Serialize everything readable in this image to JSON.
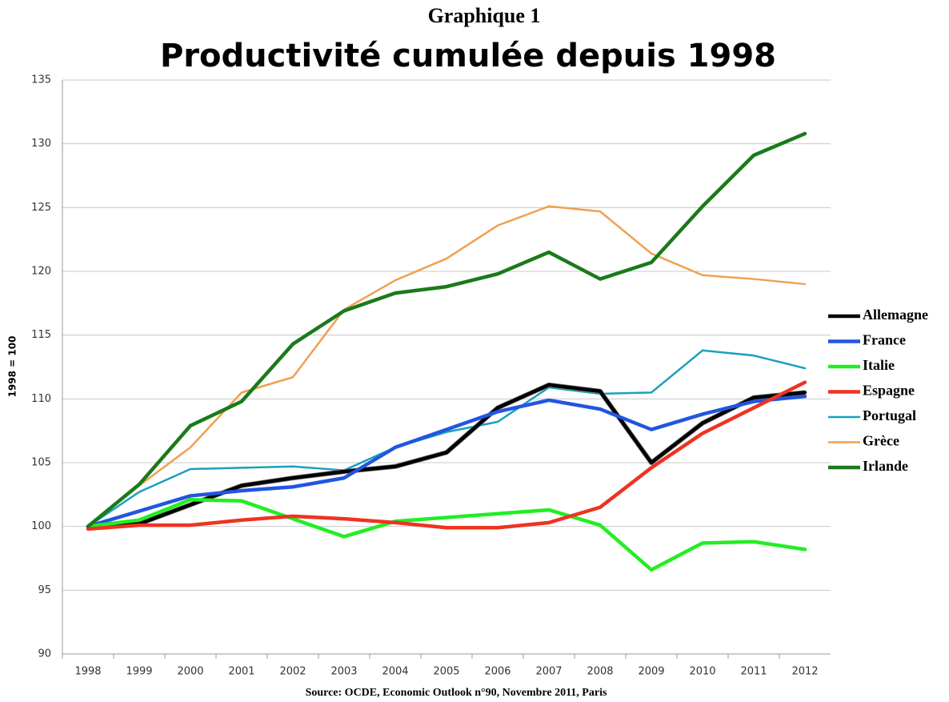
{
  "chart_data": {
    "type": "line",
    "supertitle": "Graphique 1",
    "title": "Productivité cumulée depuis 1998",
    "y_label": "1998 = 100",
    "source": "Source: OCDE, Economic Outlook n°90, Novembre 2011, Paris",
    "categories": [
      "1998",
      "1999",
      "2000",
      "2001",
      "2002",
      "2003",
      "2004",
      "2005",
      "2006",
      "2007",
      "2008",
      "2009",
      "2010",
      "2011",
      "2012"
    ],
    "ylim": [
      90,
      135
    ],
    "yticks": [
      90,
      95,
      100,
      105,
      110,
      115,
      120,
      125,
      130,
      135
    ],
    "grid": true,
    "legend": "right",
    "series": [
      {
        "name": "Grèce",
        "color": "#f0a050",
        "width": 2.5,
        "values": [
          100,
          103.2,
          106.2,
          110.5,
          111.7,
          117.0,
          119.3,
          121.0,
          123.6,
          125.1,
          124.7,
          121.4,
          119.7,
          119.4,
          119.0
        ]
      },
      {
        "name": "Portugal",
        "color": "#1aa0be",
        "width": 2.5,
        "values": [
          100,
          102.7,
          104.5,
          104.6,
          104.7,
          104.4,
          106.2,
          107.4,
          108.2,
          110.9,
          110.4,
          110.5,
          113.8,
          113.4,
          112.4
        ]
      },
      {
        "name": "Allemagne",
        "color": "#000000",
        "width": 4.5,
        "values": [
          100,
          100.2,
          101.7,
          103.2,
          103.8,
          104.3,
          104.7,
          105.8,
          109.3,
          111.1,
          110.6,
          105.0,
          108.1,
          110.1,
          110.5
        ]
      },
      {
        "name": "France",
        "color": "#2255e0",
        "width": 4.5,
        "values": [
          100,
          101.2,
          102.4,
          102.8,
          103.1,
          103.8,
          106.2,
          107.6,
          109.0,
          109.9,
          109.2,
          107.6,
          108.8,
          109.8,
          110.2
        ]
      },
      {
        "name": "Italie",
        "color": "#22ee22",
        "width": 4.5,
        "values": [
          100,
          100.5,
          102.1,
          102.0,
          100.6,
          99.2,
          100.4,
          100.7,
          101.0,
          101.3,
          100.1,
          96.6,
          98.7,
          98.8,
          98.2
        ]
      },
      {
        "name": "Espagne",
        "color": "#ee3322",
        "width": 4.5,
        "values": [
          99.8,
          100.1,
          100.1,
          100.5,
          100.8,
          100.6,
          100.3,
          99.9,
          99.9,
          100.3,
          101.5,
          104.6,
          107.3,
          109.3,
          111.3
        ]
      },
      {
        "name": "Irlande",
        "color": "#1a7a1a",
        "width": 4.5,
        "values": [
          100,
          103.3,
          107.9,
          109.8,
          114.3,
          116.9,
          118.3,
          118.8,
          119.8,
          121.5,
          119.4,
          120.7,
          125.1,
          129.1,
          130.8
        ]
      }
    ],
    "legend_order": [
      2,
      3,
      4,
      5,
      1,
      0,
      6
    ]
  }
}
